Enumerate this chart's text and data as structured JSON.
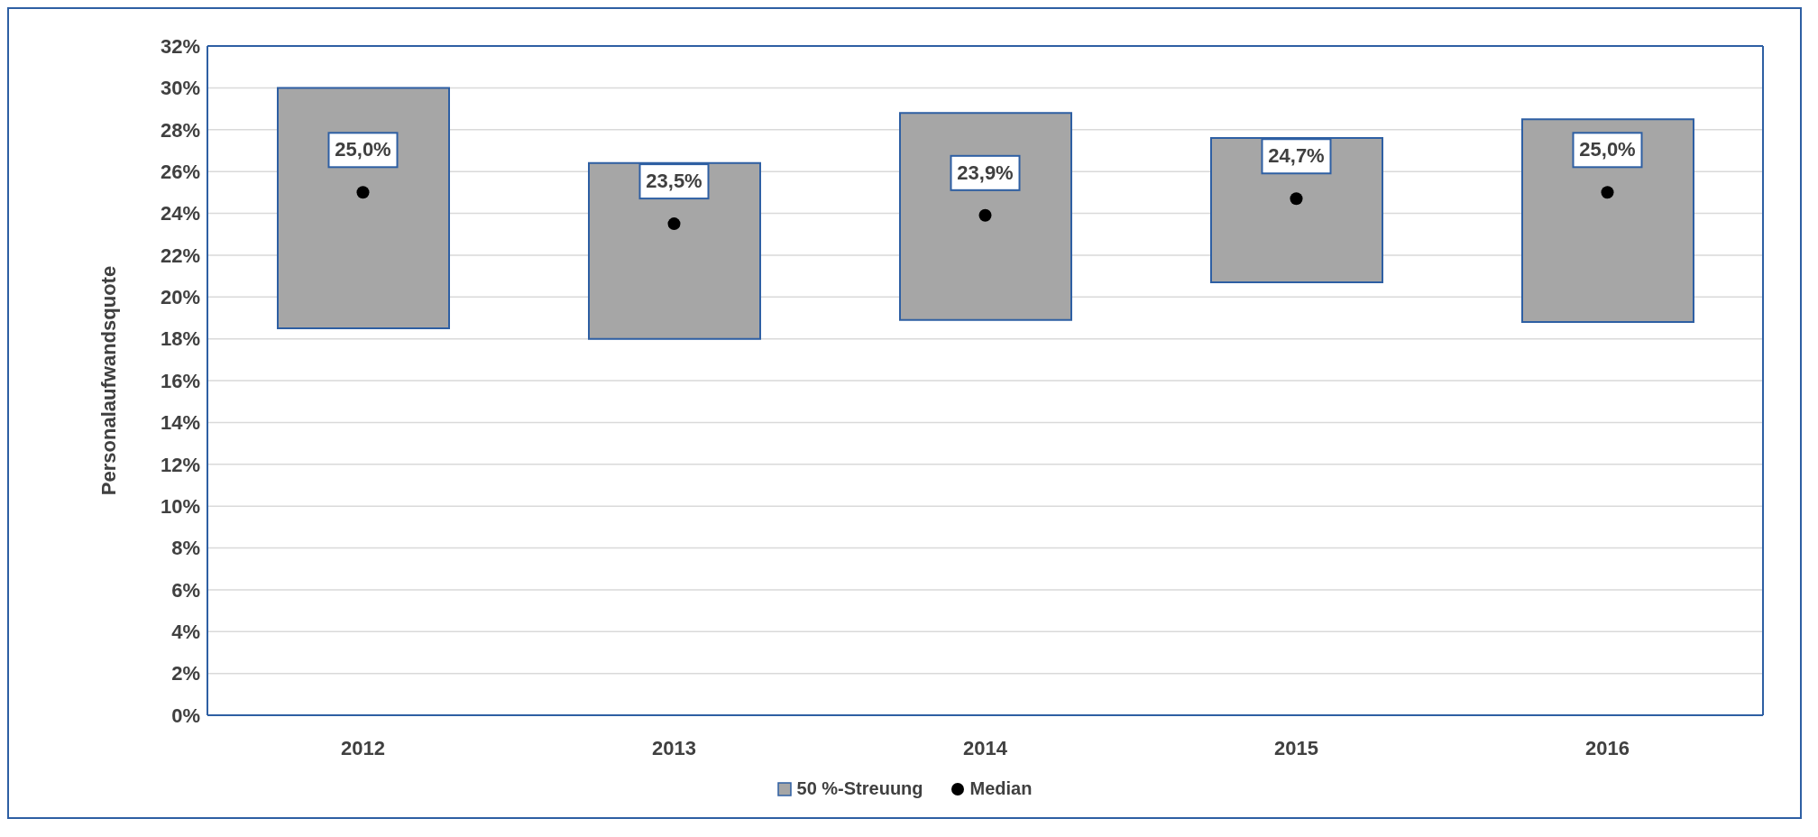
{
  "chart_data": {
    "type": "bar",
    "ylabel": "Personalaufwandsquote",
    "categories": [
      "2012",
      "2013",
      "2014",
      "2015",
      "2016"
    ],
    "series": [
      {
        "name": "50 %-Streuung",
        "color": "#a6a6a6",
        "base": [
          18.5,
          18.0,
          18.9,
          20.7,
          18.8
        ],
        "values": [
          11.5,
          8.4,
          9.9,
          6.9,
          9.7
        ]
      },
      {
        "type": "scatter",
        "name": "Median",
        "color": "#000000",
        "values": [
          25.0,
          23.5,
          23.9,
          24.7,
          25.0
        ],
        "value_labels": [
          "25,0%",
          "23,5%",
          "23,9%",
          "24,7%",
          "25,0%"
        ],
        "marker": "circle"
      }
    ],
    "ylim": [
      0,
      32
    ],
    "yticks": [
      {
        "value": 0,
        "label": "0%"
      },
      {
        "value": 2,
        "label": "2%"
      },
      {
        "value": 4,
        "label": "4%"
      },
      {
        "value": 6,
        "label": "6%"
      },
      {
        "value": 8,
        "label": "8%"
      },
      {
        "value": 10,
        "label": "10%"
      },
      {
        "value": 12,
        "label": "12%"
      },
      {
        "value": 14,
        "label": "14%"
      },
      {
        "value": 16,
        "label": "16%"
      },
      {
        "value": 18,
        "label": "18%"
      },
      {
        "value": 20,
        "label": "20%"
      },
      {
        "value": 22,
        "label": "22%"
      },
      {
        "value": 24,
        "label": "24%"
      },
      {
        "value": 26,
        "label": "26%"
      },
      {
        "value": 28,
        "label": "28%"
      },
      {
        "value": 30,
        "label": "30%"
      },
      {
        "value": 32,
        "label": "32%"
      }
    ],
    "grid": "y",
    "legend": "bottom"
  }
}
